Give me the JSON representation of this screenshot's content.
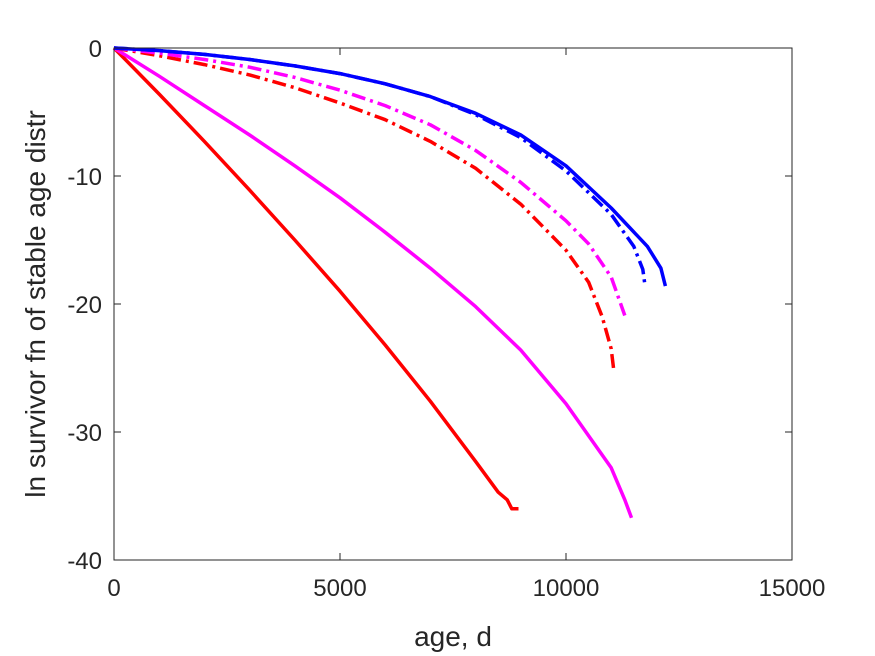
{
  "chart_data": {
    "type": "line",
    "title": "",
    "xlabel": "age, d",
    "ylabel": "ln survivor fn of stable age distr",
    "xlim": [
      0,
      15000
    ],
    "ylim": [
      -40,
      0
    ],
    "xticks": [
      0,
      5000,
      10000,
      15000
    ],
    "yticks": [
      0,
      -10,
      -20,
      -30,
      -40
    ],
    "xtick_labels": [
      "0",
      "5000",
      "10000",
      "15000"
    ],
    "ytick_labels": [
      "0",
      "-10",
      "-20",
      "-30",
      "-40"
    ],
    "grid": false,
    "series": [
      {
        "color": "#ff0000",
        "line_style": "solid",
        "x": [
          0,
          1000,
          2000,
          3000,
          4000,
          5000,
          6000,
          7000,
          8000,
          8500,
          8700,
          8800,
          8950
        ],
        "y": [
          0,
          -3.6,
          -7.3,
          -11.1,
          -15.0,
          -19.0,
          -23.2,
          -27.6,
          -32.3,
          -34.7,
          -35.3,
          -36.0,
          -36.0
        ]
      },
      {
        "color": "#ff00ff",
        "line_style": "solid",
        "x": [
          0,
          1000,
          2000,
          3000,
          4000,
          5000,
          6000,
          7000,
          8000,
          9000,
          10000,
          11000,
          11300,
          11450
        ],
        "y": [
          0,
          -2.2,
          -4.5,
          -6.8,
          -9.2,
          -11.7,
          -14.4,
          -17.2,
          -20.2,
          -23.6,
          -27.8,
          -32.8,
          -35.3,
          -36.7
        ]
      },
      {
        "color": "#ff0000",
        "line_style": "dashdot",
        "x": [
          0,
          1000,
          2000,
          3000,
          4000,
          5000,
          6000,
          7000,
          8000,
          9000,
          10000,
          10500,
          10800,
          11000,
          11050
        ],
        "y": [
          0,
          -0.6,
          -1.3,
          -2.1,
          -3.1,
          -4.3,
          -5.6,
          -7.3,
          -9.4,
          -12.2,
          -15.8,
          -18.3,
          -21.0,
          -23.5,
          -25.0
        ]
      },
      {
        "color": "#ff00ff",
        "line_style": "dashdot",
        "x": [
          0,
          1000,
          2000,
          3000,
          4000,
          5000,
          6000,
          7000,
          8000,
          9000,
          10000,
          10500,
          11000,
          11300
        ],
        "y": [
          0,
          -0.4,
          -0.9,
          -1.5,
          -2.3,
          -3.3,
          -4.5,
          -6.0,
          -8.0,
          -10.5,
          -13.5,
          -15.3,
          -17.9,
          -20.9
        ]
      },
      {
        "color": "#0000ff",
        "line_style": "dashdot",
        "x": [
          0,
          1000,
          2000,
          3000,
          4000,
          5000,
          6000,
          7000,
          8000,
          9000,
          10000,
          11000,
          11500,
          11700,
          11750
        ],
        "y": [
          0,
          -0.2,
          -0.5,
          -0.9,
          -1.4,
          -2.0,
          -2.8,
          -3.8,
          -5.2,
          -7.0,
          -9.6,
          -13.0,
          -15.5,
          -17.3,
          -18.6
        ]
      },
      {
        "color": "#0000ff",
        "line_style": "solid",
        "x": [
          0,
          1000,
          2000,
          3000,
          4000,
          5000,
          6000,
          7000,
          8000,
          9000,
          10000,
          11000,
          11800,
          12100,
          12200
        ],
        "y": [
          0,
          -0.2,
          -0.5,
          -0.9,
          -1.4,
          -2.0,
          -2.8,
          -3.8,
          -5.1,
          -6.8,
          -9.2,
          -12.5,
          -15.5,
          -17.2,
          -18.6
        ]
      }
    ]
  }
}
